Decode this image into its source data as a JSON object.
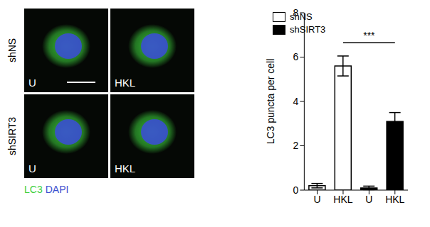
{
  "chart_data": {
    "type": "bar",
    "categories": [
      "U",
      "HKL",
      "U",
      "HKL"
    ],
    "series": [
      {
        "name": "shNS",
        "color": "#ffffff",
        "values": [
          0.2,
          5.6,
          null,
          null
        ],
        "errors": [
          0.1,
          0.45,
          null,
          null
        ]
      },
      {
        "name": "shSIRT3",
        "color": "#000000",
        "values": [
          null,
          null,
          0.1,
          3.1
        ],
        "errors": [
          null,
          null,
          0.08,
          0.4
        ]
      }
    ],
    "y_label": "LC3 puncta per cell",
    "ylim": [
      0,
      8
    ],
    "yticks": [
      0,
      2,
      4,
      6,
      8
    ],
    "legend": "upper left",
    "annotations": [
      {
        "text": "***",
        "from": 1,
        "to": 3
      }
    ]
  },
  "micrographs": {
    "rows": [
      "shNS",
      "shSIRT3"
    ],
    "columns": [
      "U",
      "HKL"
    ],
    "stains": [
      {
        "text": "LC3",
        "color": "#3ccf3c"
      },
      {
        "text": "DAPI",
        "color": "#3a4fd0"
      }
    ]
  }
}
